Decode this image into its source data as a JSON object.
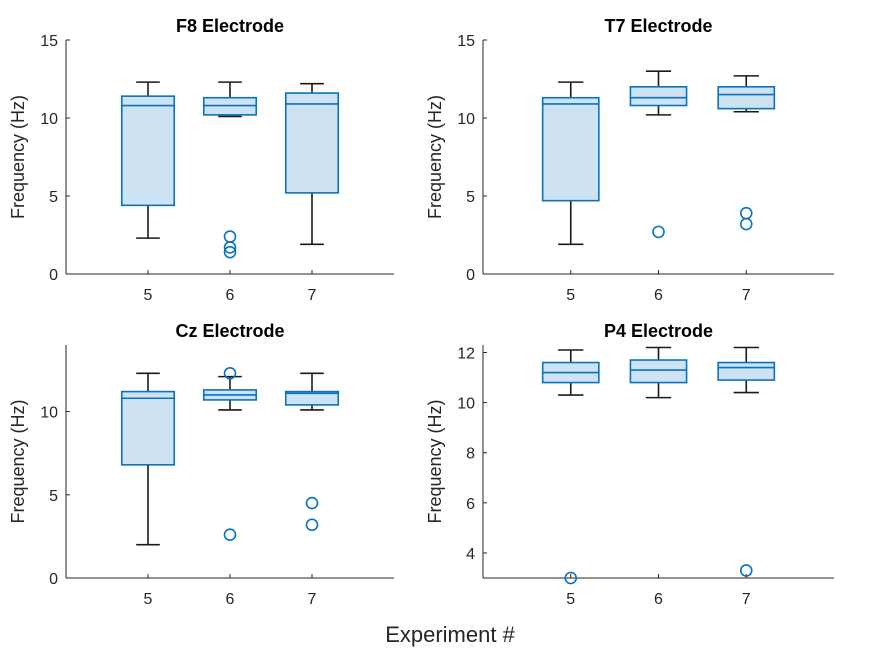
{
  "figure": {
    "xlabel": "Experiment #"
  },
  "style": {
    "box_fill": "#cde3f3",
    "box_edge": "#0b72bd",
    "whisker": "#1a1a1a",
    "axis": "#262626"
  },
  "chart_data": [
    {
      "type": "box",
      "title": "F8 Electrode",
      "xlabel": "",
      "ylabel": "Frequency (Hz)",
      "categories": [
        "5",
        "6",
        "7"
      ],
      "xlim": [
        4,
        8
      ],
      "ylim": [
        0,
        15
      ],
      "yticks": [
        0,
        5,
        10,
        15
      ],
      "boxes": [
        {
          "category": "5",
          "whisker_low": 2.3,
          "q1": 4.4,
          "median": 10.8,
          "q3": 11.4,
          "whisker_high": 12.3,
          "outliers": []
        },
        {
          "category": "6",
          "whisker_low": 10.1,
          "q1": 10.2,
          "median": 10.8,
          "q3": 11.3,
          "whisker_high": 12.3,
          "outliers": [
            2.4,
            1.7,
            1.4
          ]
        },
        {
          "category": "7",
          "whisker_low": 1.9,
          "q1": 5.2,
          "median": 10.9,
          "q3": 11.6,
          "whisker_high": 12.2,
          "outliers": []
        }
      ]
    },
    {
      "type": "box",
      "title": "T7 Electrode",
      "xlabel": "",
      "ylabel": "Frequency (Hz)",
      "categories": [
        "5",
        "6",
        "7"
      ],
      "xlim": [
        4,
        8
      ],
      "ylim": [
        0,
        15
      ],
      "yticks": [
        0,
        5,
        10,
        15
      ],
      "boxes": [
        {
          "category": "5",
          "whisker_low": 1.9,
          "q1": 4.7,
          "median": 10.9,
          "q3": 11.3,
          "whisker_high": 12.3,
          "outliers": []
        },
        {
          "category": "6",
          "whisker_low": 10.2,
          "q1": 10.8,
          "median": 11.3,
          "q3": 12.0,
          "whisker_high": 13.0,
          "outliers": [
            2.7
          ]
        },
        {
          "category": "7",
          "whisker_low": 10.4,
          "q1": 10.6,
          "median": 11.5,
          "q3": 12.0,
          "whisker_high": 12.7,
          "outliers": [
            3.9,
            3.2
          ]
        }
      ]
    },
    {
      "type": "box",
      "title": "Cz Electrode",
      "xlabel": "",
      "ylabel": "Frequency (Hz)",
      "categories": [
        "5",
        "6",
        "7"
      ],
      "xlim": [
        4,
        8
      ],
      "ylim": [
        0,
        14
      ],
      "yticks": [
        0,
        5,
        10
      ],
      "boxes": [
        {
          "category": "5",
          "whisker_low": 2.0,
          "q1": 6.8,
          "median": 10.8,
          "q3": 11.2,
          "whisker_high": 12.3,
          "outliers": []
        },
        {
          "category": "6",
          "whisker_low": 10.1,
          "q1": 10.7,
          "median": 11.0,
          "q3": 11.3,
          "whisker_high": 12.1,
          "outliers": [
            12.3,
            2.6
          ]
        },
        {
          "category": "7",
          "whisker_low": 10.1,
          "q1": 10.4,
          "median": 11.1,
          "q3": 11.2,
          "whisker_high": 12.3,
          "outliers": [
            4.5,
            3.2
          ]
        }
      ]
    },
    {
      "type": "box",
      "title": "P4 Electrode",
      "xlabel": "",
      "ylabel": "Frequency (Hz)",
      "categories": [
        "5",
        "6",
        "7"
      ],
      "xlim": [
        4,
        8
      ],
      "ylim": [
        3,
        12.3
      ],
      "yticks": [
        4,
        6,
        8,
        10,
        12
      ],
      "boxes": [
        {
          "category": "5",
          "whisker_low": 10.3,
          "q1": 10.8,
          "median": 11.2,
          "q3": 11.6,
          "whisker_high": 12.1,
          "outliers": [
            3.0
          ]
        },
        {
          "category": "6",
          "whisker_low": 10.2,
          "q1": 10.8,
          "median": 11.3,
          "q3": 11.7,
          "whisker_high": 12.2,
          "outliers": []
        },
        {
          "category": "7",
          "whisker_low": 10.4,
          "q1": 10.9,
          "median": 11.4,
          "q3": 11.6,
          "whisker_high": 12.2,
          "outliers": [
            3.3
          ]
        }
      ]
    }
  ]
}
